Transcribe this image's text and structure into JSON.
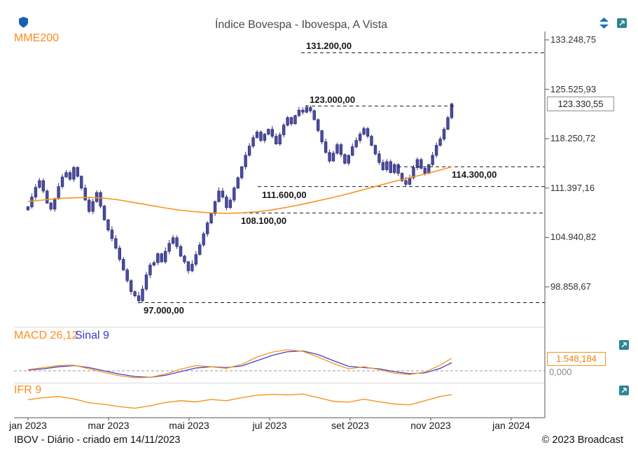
{
  "icons": {
    "logo": "broadcast-shield-logo",
    "y_scale": "up-down-arrows",
    "expand": "open-in-new-window"
  },
  "footer": {
    "left": "IBOV - Diário - criado em 14/11/2023",
    "right": "© 2023 Broadcast"
  },
  "chart_data": {
    "type": "candlestick",
    "title": "Índice Bovespa - Ibovespa, A Vista",
    "instrument": "IBOV",
    "x_labels": [
      "jan 2023",
      "mar 2023",
      "mai 2023",
      "jul 2023",
      "set 2023",
      "nov 2023",
      "jan 2024"
    ],
    "y_axis": {
      "scale": "log",
      "tick_labels": [
        "133.248,75",
        "125.525,93",
        "118.250,72",
        "111.397,16",
        "104.940,82",
        "98.858,67"
      ],
      "tick_values": [
        133248.75,
        125525.93,
        118250.72,
        111397.16,
        104940.82,
        98858.67
      ]
    },
    "last_price": {
      "label": "123.330,55",
      "value": 123330.55
    },
    "levels": [
      {
        "label": "131.200,00",
        "value": 131200
      },
      {
        "label": "123.000,00",
        "value": 123000
      },
      {
        "label": "114.300,00",
        "value": 114300
      },
      {
        "label": "111.600,00",
        "value": 111600
      },
      {
        "label": "108.100,00",
        "value": 108100
      },
      {
        "label": "97.000,00",
        "value": 97000
      }
    ],
    "candles": {
      "first_open": 108500,
      "closes": [
        108900,
        110200,
        111500,
        112400,
        111000,
        109400,
        108600,
        110000,
        111600,
        112900,
        113500,
        112600,
        114200,
        113000,
        111400,
        109800,
        108300,
        109600,
        110800,
        109000,
        107200,
        105900,
        104800,
        103600,
        102200,
        100900,
        99600,
        98300,
        97800,
        97200,
        98600,
        100300,
        101500,
        101800,
        102900,
        101900,
        103200,
        104200,
        104900,
        103800,
        102600,
        101900,
        100800,
        101600,
        102800,
        104000,
        105400,
        106800,
        108000,
        109600,
        111000,
        110200,
        108800,
        109800,
        111400,
        112800,
        114300,
        115900,
        117200,
        118400,
        119200,
        118000,
        118900,
        119600,
        118600,
        117500,
        118800,
        120200,
        121300,
        120400,
        121600,
        122400,
        122100,
        122800,
        122300,
        121000,
        119400,
        117800,
        116300,
        115100,
        116200,
        117400,
        116000,
        114800,
        115900,
        117100,
        118000,
        118900,
        119700,
        118600,
        117300,
        116100,
        114900,
        113900,
        115000,
        113500,
        114600,
        113400,
        112400,
        111900,
        112800,
        114200,
        115300,
        114100,
        113400,
        114600,
        115900,
        117300,
        118200,
        119600,
        121300,
        123330
      ]
    },
    "mme200": {
      "label": "MME200",
      "color": "#f7941d",
      "sample_step": 4,
      "values": [
        109600,
        109800,
        110000,
        110100,
        110150,
        110050,
        109800,
        109450,
        109100,
        108750,
        108450,
        108250,
        108100,
        108050,
        108100,
        108250,
        108500,
        108850,
        109250,
        109700,
        110150,
        110650,
        111200,
        111750,
        112300,
        112800,
        113300,
        113850,
        114300
      ]
    },
    "macd_panel": {
      "labels": {
        "macd": "MACD 26,12",
        "sinal": "Sinal 9"
      },
      "value_label": "1.548,184",
      "value": 1548.184,
      "zero_label": "0,000",
      "macd_color": "#f7941d",
      "sinal_color": "#4040c8",
      "sample_step": 4,
      "macd": [
        150,
        400,
        650,
        700,
        250,
        -200,
        -600,
        -850,
        -800,
        -400,
        200,
        650,
        500,
        300,
        800,
        1700,
        2300,
        2600,
        2400,
        1700,
        900,
        250,
        500,
        150,
        -300,
        -450,
        -150,
        700,
        1548
      ],
      "sinal": [
        100,
        250,
        500,
        650,
        400,
        0,
        -400,
        -700,
        -800,
        -550,
        -100,
        350,
        500,
        400,
        600,
        1250,
        1900,
        2350,
        2450,
        2000,
        1250,
        550,
        400,
        250,
        -100,
        -350,
        -250,
        300,
        1000
      ]
    },
    "ifr_panel": {
      "label": "IFR 9",
      "color": "#f7941d",
      "sample_step": 4,
      "values": [
        55,
        62,
        66,
        58,
        45,
        40,
        32,
        27,
        35,
        46,
        52,
        48,
        56,
        52,
        62,
        70,
        73,
        71,
        74,
        62,
        50,
        47,
        57,
        48,
        41,
        38,
        52,
        66,
        72
      ]
    }
  }
}
